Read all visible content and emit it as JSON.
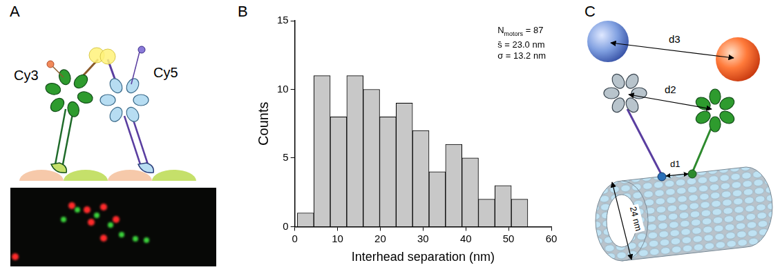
{
  "panel_labels": [
    "A",
    "B",
    "C"
  ],
  "panel_a": {
    "dye_labels": [
      "Cy3",
      "Cy5"
    ]
  },
  "chart_data": {
    "type": "histogram",
    "bins": [
      0.6,
      4.45,
      8.3,
      12.15,
      16,
      19.85,
      23.7,
      27.55,
      31.4,
      35.25,
      39.1,
      42.95,
      46.8,
      50.65,
      54.5
    ],
    "values": [
      1,
      11,
      8,
      11,
      10,
      8,
      9,
      7,
      4,
      6,
      5,
      2,
      3,
      2
    ],
    "color": "#c8c8c8",
    "xlabel": "Interhead separation (nm)",
    "ylabel": "Counts",
    "xlim": [
      0,
      60
    ],
    "ylim": [
      0,
      15
    ],
    "xticks": [
      0,
      10,
      20,
      30,
      40,
      50,
      60
    ],
    "yticks": [
      0,
      5,
      10,
      15
    ],
    "grid": false,
    "annotations": [
      {
        "text": "N",
        "subscript": "motors",
        "suffix": " = 87"
      },
      {
        "text": "s̄ = 23.0 nm"
      },
      {
        "text": "σ = 13.2 nm"
      }
    ]
  },
  "panel_c": {
    "distance_labels": [
      "d3",
      "d2",
      "d1"
    ],
    "diameter_label": "24 nm"
  }
}
